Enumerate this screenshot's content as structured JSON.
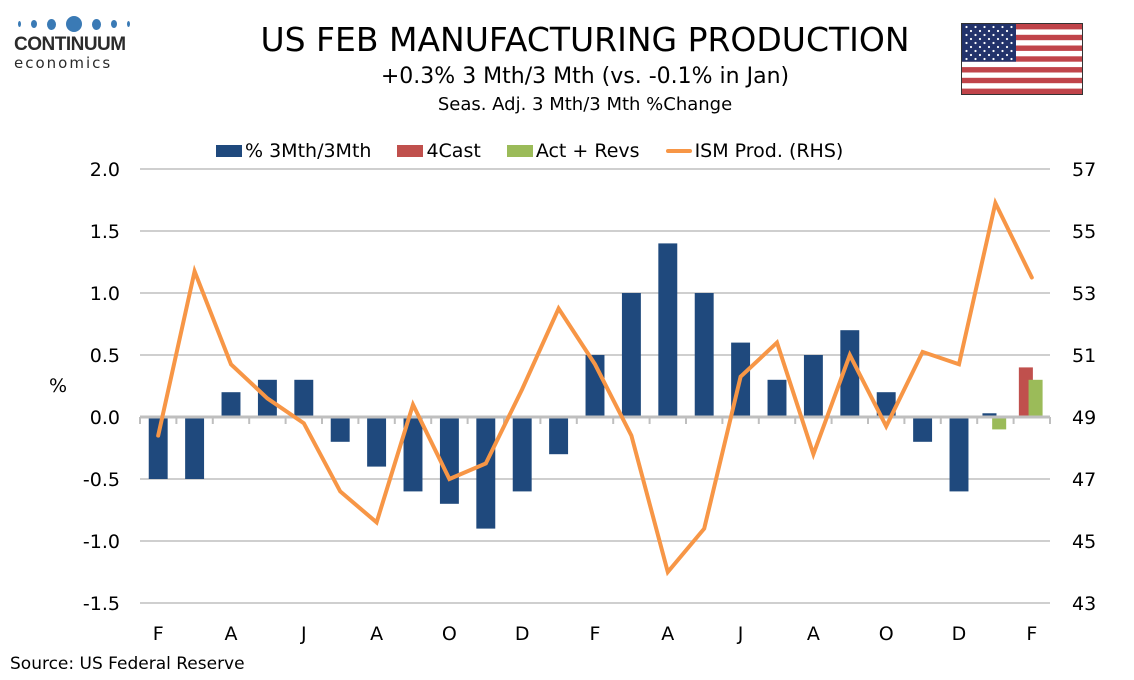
{
  "logo": {
    "name": "CONTINUUM",
    "sub": "economics"
  },
  "header": {
    "title": "US FEB MANUFACTURING PRODUCTION",
    "subtitle": "+0.3% 3 Mth/3 Mth (vs. -0.1% in Jan)",
    "subsubtitle": "Seas. Adj. 3 Mth/3 Mth %Change"
  },
  "flag_icon": "us-flag",
  "source": "Source: US Federal Reserve",
  "colors": {
    "blue": "#1f497d",
    "red": "#c0504d",
    "green": "#9bbb59",
    "orange": "#f79646",
    "grid": "#bfbfbf"
  },
  "chart_data": {
    "type": "bar",
    "title": "US FEB MANUFACTURING PRODUCTION",
    "ylabel": "%",
    "ylabel_right": "",
    "ylim": [
      -1.5,
      2.0
    ],
    "yticks": [
      "2.0",
      "1.5",
      "1.0",
      "0.5",
      "0.0",
      "-0.5",
      "-1.0",
      "-1.5"
    ],
    "ylim_right": [
      43,
      57
    ],
    "yticks_right": [
      "57",
      "55",
      "53",
      "51",
      "49",
      "47",
      "45",
      "43"
    ],
    "grid": true,
    "legend_position": "top",
    "categories": [
      "F",
      "M",
      "A",
      "M",
      "J",
      "J",
      "A",
      "S",
      "O",
      "N",
      "D",
      "J",
      "F",
      "M",
      "A",
      "M",
      "J",
      "J",
      "A",
      "S",
      "O",
      "N",
      "D",
      "J",
      "F"
    ],
    "xtick_labels": [
      {
        "index": 0,
        "label": "F"
      },
      {
        "index": 2,
        "label": "A"
      },
      {
        "index": 4,
        "label": "J"
      },
      {
        "index": 6,
        "label": "A"
      },
      {
        "index": 8,
        "label": "O"
      },
      {
        "index": 10,
        "label": "D"
      },
      {
        "index": 12,
        "label": "F"
      },
      {
        "index": 14,
        "label": "A"
      },
      {
        "index": 16,
        "label": "J"
      },
      {
        "index": 18,
        "label": "A"
      },
      {
        "index": 20,
        "label": "O"
      },
      {
        "index": 22,
        "label": "D"
      },
      {
        "index": 24,
        "label": "F"
      }
    ],
    "series": [
      {
        "name": "% 3Mth/3Mth",
        "type": "bar",
        "axis": "left",
        "color": "#1f497d",
        "values": [
          -0.5,
          -0.5,
          0.2,
          0.3,
          0.3,
          -0.2,
          -0.4,
          -0.6,
          -0.7,
          -0.9,
          -0.6,
          -0.3,
          0.5,
          1.0,
          1.4,
          1.0,
          0.6,
          0.3,
          0.5,
          0.7,
          0.2,
          -0.2,
          -0.6,
          0.03,
          null
        ]
      },
      {
        "name": "4Cast",
        "type": "bar",
        "axis": "left",
        "color": "#c0504d",
        "values": [
          null,
          null,
          null,
          null,
          null,
          null,
          null,
          null,
          null,
          null,
          null,
          null,
          null,
          null,
          null,
          null,
          null,
          null,
          null,
          null,
          null,
          null,
          null,
          null,
          0.4
        ]
      },
      {
        "name": "Act + Revs",
        "type": "bar",
        "axis": "left",
        "color": "#9bbb59",
        "values": [
          null,
          null,
          null,
          null,
          null,
          null,
          null,
          null,
          null,
          null,
          null,
          null,
          null,
          null,
          null,
          null,
          null,
          null,
          null,
          null,
          null,
          null,
          null,
          -0.1,
          0.3
        ]
      },
      {
        "name": "ISM Prod. (RHS)",
        "type": "line",
        "axis": "right",
        "color": "#f79646",
        "values": [
          48.4,
          53.7,
          50.7,
          49.6,
          48.8,
          46.6,
          45.6,
          49.4,
          47.0,
          47.5,
          49.9,
          52.5,
          50.7,
          48.4,
          44.0,
          45.4,
          50.3,
          51.4,
          47.8,
          51.0,
          48.7,
          51.1,
          50.7,
          55.9,
          53.5
        ]
      }
    ]
  }
}
